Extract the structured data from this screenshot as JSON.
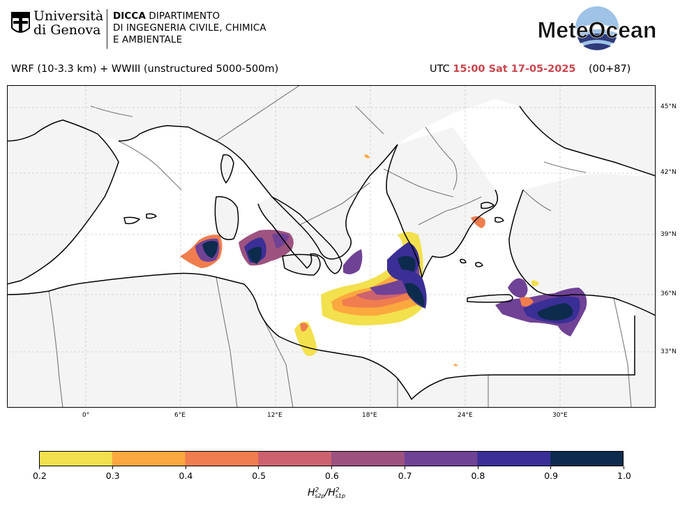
{
  "header": {
    "university_name_line1": "Università",
    "university_name_line2": "di Genova",
    "dept_line1_bold": "DICCA",
    "dept_line1_rest": " DIPARTIMENTO",
    "dept_line2": "DI INGEGNERIA CIVILE, CHIMICA",
    "dept_line3": "E AMBIENTALE",
    "brand": "MeteOcean"
  },
  "subtitle": {
    "model": "WRF (10-3.3 km) + WWIII (unstructured 5000-500m)",
    "utc_prefix": "UTC ",
    "time": "15:00 Sat 17-05-2025",
    "lead": "(00+87)"
  },
  "map": {
    "lon_ticks": [
      "0°",
      "6°E",
      "12°E",
      "18°E",
      "24°E",
      "30°E"
    ],
    "lat_ticks": [
      "45°N",
      "42°N",
      "39°N",
      "36°N",
      "33°N"
    ]
  },
  "colorbar": {
    "ticks": [
      "0.2",
      "0.3",
      "0.4",
      "0.5",
      "0.6",
      "0.7",
      "0.8",
      "0.9",
      "1.0"
    ],
    "colors": [
      "#f2e04d",
      "#fba83f",
      "#f07d4e",
      "#cc6270",
      "#9d5280",
      "#704296",
      "#3a2f96",
      "#0d2b4d"
    ],
    "label_main": "H",
    "label_sup1": "2",
    "label_sub1": "s2p",
    "label_slash": "/H",
    "label_sup2": "2",
    "label_sub2": "s1p"
  },
  "colors": {
    "land": "#f4f4f4",
    "sea": "#ffffff",
    "coast": "#000000",
    "border": "#777777",
    "grid": "#c8c8c8",
    "time_highlight": "#c9464c"
  }
}
